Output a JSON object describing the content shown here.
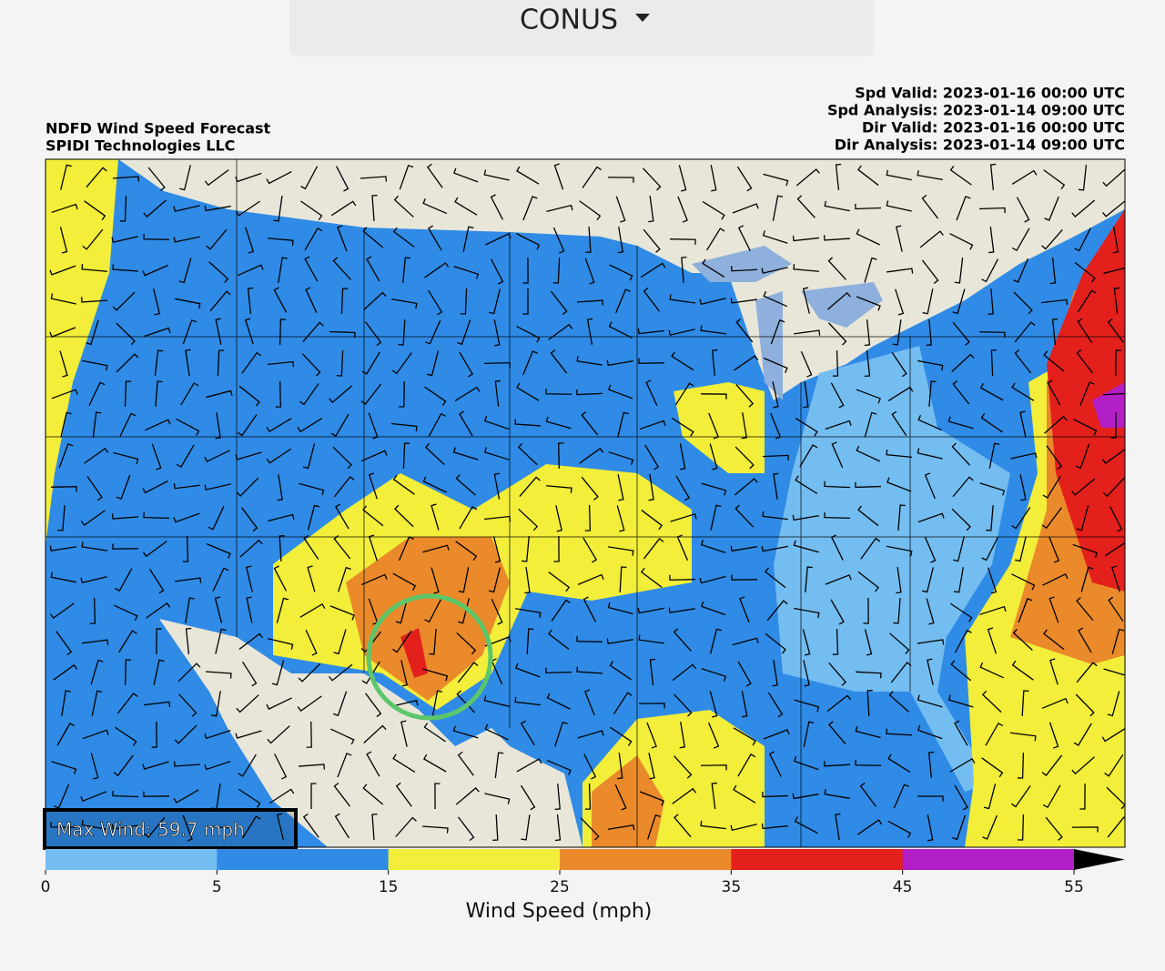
{
  "header": {
    "dropdown": "CONUS"
  },
  "map": {
    "title": [
      "NDFD Wind Speed Forecast",
      "SPIDI Technologies LLC"
    ],
    "info": [
      "Spd Valid: 2023-01-16 00:00 UTC",
      "Spd Analysis: 2023-01-14 09:00 UTC",
      "Dir Valid: 2023-01-16 00:00 UTC",
      "Dir Analysis: 2023-01-14 09:00 UTC"
    ],
    "max_wind": "Max Wind: 59.7 mph"
  },
  "colorbar": {
    "label": "Wind Speed (mph)",
    "ticks": [
      0,
      5,
      15,
      25,
      35,
      45,
      55
    ],
    "colors": [
      "#74bdf0",
      "#2f8be6",
      "#f2ee3a",
      "#ea8a2a",
      "#e3201c",
      "#b31fc6"
    ],
    "extend_color": "#000000"
  }
}
